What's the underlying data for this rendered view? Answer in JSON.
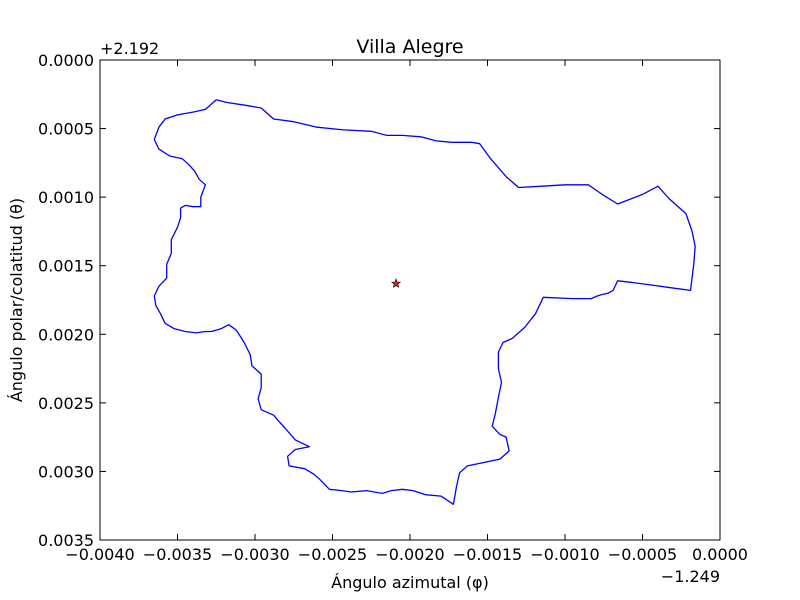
{
  "chart_data": {
    "type": "line",
    "title": "Villa Alegre",
    "xlabel": "Ángulo azimutal (φ)",
    "ylabel": "Ángulo polar/colatitud (θ)",
    "x_offset_label": "−1.249",
    "y_offset_label": "+2.192",
    "xlim": [
      -0.004,
      0.0
    ],
    "ylim": [
      0.0035,
      0.0
    ],
    "y_inverted": true,
    "grid": false,
    "x_ticks": [
      -0.004,
      -0.0035,
      -0.003,
      -0.0025,
      -0.002,
      -0.0015,
      -0.001,
      -0.0005,
      0.0
    ],
    "x_tick_labels": [
      "−0.0040",
      "−0.0035",
      "−0.0030",
      "−0.0025",
      "−0.0020",
      "−0.0015",
      "−0.0010",
      "−0.0005",
      "0.0000"
    ],
    "y_ticks": [
      0.0,
      0.0005,
      0.001,
      0.0015,
      0.002,
      0.0025,
      0.003,
      0.0035
    ],
    "y_tick_labels": [
      "0.0000",
      "0.0005",
      "0.0010",
      "0.0015",
      "0.0020",
      "0.0025",
      "0.0030",
      "0.0035"
    ],
    "series": [
      {
        "color": "#0000ff",
        "marker": "none",
        "points": [
          [
            -0.00325,
            0.00029
          ],
          [
            -0.00318,
            0.00031
          ],
          [
            -0.00306,
            0.00033
          ],
          [
            -0.00296,
            0.00035
          ],
          [
            -0.00288,
            0.00043
          ],
          [
            -0.00275,
            0.00045
          ],
          [
            -0.0026,
            0.00049
          ],
          [
            -0.00243,
            0.00051
          ],
          [
            -0.00225,
            0.00052
          ],
          [
            -0.00215,
            0.00055
          ],
          [
            -0.00205,
            0.00055
          ],
          [
            -0.00193,
            0.00056
          ],
          [
            -0.00183,
            0.00059
          ],
          [
            -0.00173,
            0.0006
          ],
          [
            -0.0016,
            0.0006
          ],
          [
            -0.00155,
            0.00061
          ],
          [
            -0.00148,
            0.00072
          ],
          [
            -0.00138,
            0.00085
          ],
          [
            -0.0013,
            0.00093
          ],
          [
            -0.00115,
            0.00092
          ],
          [
            -0.001,
            0.00091
          ],
          [
            -0.00085,
            0.00091
          ],
          [
            -0.00076,
            0.00098
          ],
          [
            -0.00066,
            0.00105
          ],
          [
            -0.0005,
            0.00098
          ],
          [
            -0.0004,
            0.00092
          ],
          [
            -0.00033,
            0.00101
          ],
          [
            -0.00022,
            0.00112
          ],
          [
            -0.00018,
            0.00125
          ],
          [
            -0.00016,
            0.00136
          ],
          [
            -0.00017,
            0.0015
          ],
          [
            -0.00019,
            0.00168
          ],
          [
            -0.00032,
            0.00166
          ],
          [
            -0.00045,
            0.00164
          ],
          [
            -0.00058,
            0.00162
          ],
          [
            -0.00066,
            0.00161
          ],
          [
            -0.00069,
            0.00168
          ],
          [
            -0.00072,
            0.0017
          ],
          [
            -0.00076,
            0.00171
          ],
          [
            -0.00079,
            0.00172
          ],
          [
            -0.00083,
            0.00174
          ],
          [
            -0.00095,
            0.00174
          ],
          [
            -0.00114,
            0.00173
          ],
          [
            -0.00119,
            0.00185
          ],
          [
            -0.00126,
            0.00195
          ],
          [
            -0.00134,
            0.00203
          ],
          [
            -0.0014,
            0.00206
          ],
          [
            -0.00143,
            0.00213
          ],
          [
            -0.00143,
            0.00225
          ],
          [
            -0.00141,
            0.00235
          ],
          [
            -0.00143,
            0.00246
          ],
          [
            -0.00145,
            0.00258
          ],
          [
            -0.00147,
            0.00267
          ],
          [
            -0.00142,
            0.00273
          ],
          [
            -0.00138,
            0.00275
          ],
          [
            -0.00136,
            0.00285
          ],
          [
            -0.00142,
            0.00291
          ],
          [
            -0.0015,
            0.00293
          ],
          [
            -0.00163,
            0.00296
          ],
          [
            -0.00168,
            0.00301
          ],
          [
            -0.0017,
            0.00311
          ],
          [
            -0.00172,
            0.00324
          ],
          [
            -0.0018,
            0.00318
          ],
          [
            -0.0019,
            0.00317
          ],
          [
            -0.00198,
            0.00314
          ],
          [
            -0.00205,
            0.00313
          ],
          [
            -0.00212,
            0.00314
          ],
          [
            -0.00218,
            0.00316
          ],
          [
            -0.00228,
            0.00314
          ],
          [
            -0.00238,
            0.00315
          ],
          [
            -0.00244,
            0.00314
          ],
          [
            -0.00252,
            0.00313
          ],
          [
            -0.00258,
            0.00306
          ],
          [
            -0.00262,
            0.00302
          ],
          [
            -0.00268,
            0.00298
          ],
          [
            -0.00278,
            0.00296
          ],
          [
            -0.00279,
            0.00289
          ],
          [
            -0.00274,
            0.00284
          ],
          [
            -0.00265,
            0.00282
          ],
          [
            -0.00274,
            0.00277
          ],
          [
            -0.00281,
            0.00268
          ],
          [
            -0.00285,
            0.00263
          ],
          [
            -0.00288,
            0.00259
          ],
          [
            -0.00296,
            0.00255
          ],
          [
            -0.00298,
            0.00247
          ],
          [
            -0.00296,
            0.00239
          ],
          [
            -0.00296,
            0.00229
          ],
          [
            -0.00302,
            0.00223
          ],
          [
            -0.00303,
            0.00215
          ],
          [
            -0.00307,
            0.00206
          ],
          [
            -0.00312,
            0.00197
          ],
          [
            -0.00317,
            0.00193
          ],
          [
            -0.00322,
            0.00196
          ],
          [
            -0.00328,
            0.00198
          ],
          [
            -0.00332,
            0.00198
          ],
          [
            -0.00338,
            0.00199
          ],
          [
            -0.00345,
            0.00198
          ],
          [
            -0.00352,
            0.00196
          ],
          [
            -0.00358,
            0.00192
          ],
          [
            -0.00361,
            0.00185
          ],
          [
            -0.00364,
            0.00179
          ],
          [
            -0.00365,
            0.00172
          ],
          [
            -0.00362,
            0.00165
          ],
          [
            -0.00357,
            0.00159
          ],
          [
            -0.00357,
            0.00149
          ],
          [
            -0.00354,
            0.00141
          ],
          [
            -0.00354,
            0.00131
          ],
          [
            -0.0035,
            0.00122
          ],
          [
            -0.00348,
            0.00115
          ],
          [
            -0.00348,
            0.00108
          ],
          [
            -0.00345,
            0.00106
          ],
          [
            -0.0034,
            0.00107
          ],
          [
            -0.00335,
            0.00107
          ],
          [
            -0.00335,
            0.001
          ],
          [
            -0.00332,
            0.00091
          ],
          [
            -0.00336,
            0.00087
          ],
          [
            -0.00339,
            0.00081
          ],
          [
            -0.00343,
            0.00076
          ],
          [
            -0.00347,
            0.00072
          ],
          [
            -0.00355,
            0.0007
          ],
          [
            -0.00362,
            0.00065
          ],
          [
            -0.00365,
            0.00058
          ],
          [
            -0.00362,
            0.00049
          ],
          [
            -0.00358,
            0.00043
          ],
          [
            -0.0035,
            0.0004
          ],
          [
            -0.0034,
            0.00038
          ],
          [
            -0.00332,
            0.00036
          ],
          [
            -0.00325,
            0.00029
          ]
        ]
      }
    ],
    "markers": [
      {
        "symbol": "star",
        "x": -0.00209,
        "y": 0.00163,
        "color": "#d62728"
      }
    ]
  }
}
